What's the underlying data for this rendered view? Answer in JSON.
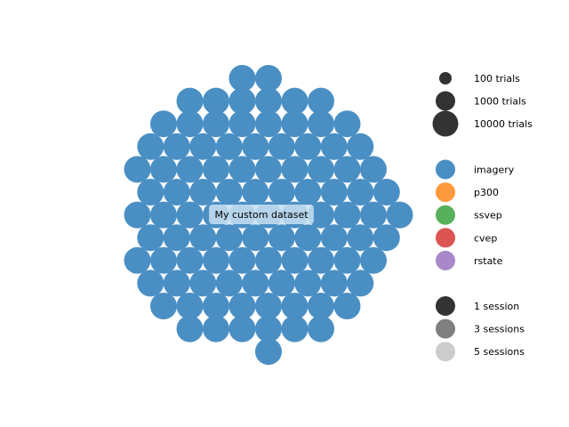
{
  "chart_data": {
    "type": "scatter",
    "title": "",
    "xlabel": "",
    "ylabel": "",
    "grid": false,
    "axes_visible": false,
    "dataset": {
      "label": "My custom dataset",
      "paradigm": "imagery",
      "color": "#4a8fc4",
      "rows": [
        {
          "count": 2,
          "offset": 3.0
        },
        {
          "count": 6,
          "offset": 1.0
        },
        {
          "count": 8,
          "offset": 0.0
        },
        {
          "count": 9,
          "offset": -0.5
        },
        {
          "count": 10,
          "offset": -1.0
        },
        {
          "count": 10,
          "offset": -0.5
        },
        {
          "count": 11,
          "offset": -1.0
        },
        {
          "count": 10,
          "offset": -0.5
        },
        {
          "count": 10,
          "offset": -1.0
        },
        {
          "count": 9,
          "offset": -0.5
        },
        {
          "count": 8,
          "offset": 0.0
        },
        {
          "count": 6,
          "offset": 1.0
        },
        {
          "count": 1,
          "offset": 4.0
        }
      ]
    },
    "legend": {
      "placement": "right",
      "size_group": [
        {
          "label": "100 trials",
          "size": "small",
          "color": "#333333"
        },
        {
          "label": "1000 trials",
          "size": "medium",
          "color": "#333333"
        },
        {
          "label": "10000 trials",
          "size": "large",
          "color": "#333333"
        }
      ],
      "paradigm_group": [
        {
          "label": "imagery",
          "color": "#4a8fc4"
        },
        {
          "label": "p300",
          "color": "#ff9a3c"
        },
        {
          "label": "ssvep",
          "color": "#57b05a"
        },
        {
          "label": "cvep",
          "color": "#dc5454"
        },
        {
          "label": "rstate",
          "color": "#a888c8"
        }
      ],
      "session_group": [
        {
          "label": "1 session",
          "color": "#333333"
        },
        {
          "label": "3 sessions",
          "color": "#808080"
        },
        {
          "label": "5 sessions",
          "color": "#cccccc"
        }
      ]
    }
  }
}
